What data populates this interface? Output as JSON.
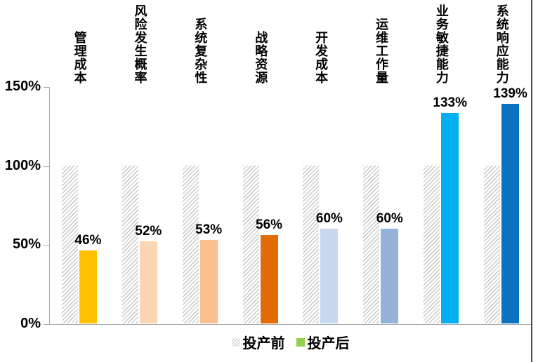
{
  "chart_data": {
    "type": "bar",
    "title": "",
    "categories": [
      "管理成本",
      "风险发生概率",
      "系统复杂性",
      "战略资源",
      "开发成本",
      "运维工作量",
      "业务敏捷能力",
      "系统响应能力"
    ],
    "series": [
      {
        "name": "投产前",
        "values": [
          100,
          100,
          100,
          100,
          100,
          100,
          100,
          100
        ],
        "fill": "gray-hatch"
      },
      {
        "name": "投产后",
        "values": [
          46,
          52,
          53,
          56,
          60,
          60,
          133,
          139
        ],
        "bar_colors": [
          "#FFC000",
          "#FCD5B4",
          "#FAC090",
          "#E36C09",
          "#C6D9F1",
          "#95B3D7",
          "#00B0F0",
          "#0B72BF"
        ]
      }
    ],
    "value_labels": [
      "46%",
      "52%",
      "53%",
      "56%",
      "60%",
      "60%",
      "133%",
      "139%"
    ],
    "xlabel": "",
    "ylabel": "",
    "yticks": [
      "0%",
      "50%",
      "100%",
      "150%"
    ],
    "ylim": [
      0,
      150
    ],
    "grid": false,
    "legend_position": "bottom-center",
    "legend": [
      {
        "label": "投产前",
        "swatch": "hatch"
      },
      {
        "label": "投产后",
        "swatch": "#92D050"
      }
    ]
  },
  "style_colors": {
    "axis": "#A9A9A9",
    "hatch_stripe": "#C6C6C6",
    "text": "#000000",
    "right_border": "#4D4D4D",
    "legend_after_swatch": "#92D050"
  }
}
